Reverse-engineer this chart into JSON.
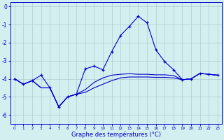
{
  "x": [
    0,
    1,
    2,
    3,
    4,
    5,
    6,
    7,
    8,
    9,
    10,
    11,
    12,
    13,
    14,
    15,
    16,
    17,
    18,
    19,
    20,
    21,
    22,
    23
  ],
  "line_main": [
    -4.0,
    -4.3,
    -4.1,
    -3.8,
    -4.5,
    -5.55,
    -5.0,
    -4.85,
    -3.45,
    -3.3,
    -3.5,
    -2.5,
    -1.6,
    -1.1,
    -0.55,
    -0.9,
    -2.4,
    -3.05,
    -3.5,
    -4.05,
    -4.0,
    -3.7,
    -3.75,
    -3.8
  ],
  "line_mid": [
    -4.0,
    -4.3,
    -4.1,
    -4.5,
    -4.5,
    -5.55,
    -5.0,
    -4.85,
    -4.6,
    -4.2,
    -3.95,
    -3.8,
    -3.75,
    -3.72,
    -3.75,
    -3.75,
    -3.78,
    -3.78,
    -3.82,
    -4.05,
    -4.0,
    -3.7,
    -3.75,
    -3.8
  ],
  "line_low": [
    -4.0,
    -4.3,
    -4.1,
    -4.5,
    -4.5,
    -5.55,
    -5.0,
    -4.85,
    -4.75,
    -4.5,
    -4.3,
    -4.1,
    -3.95,
    -3.9,
    -3.9,
    -3.9,
    -3.92,
    -3.92,
    -3.95,
    -4.05,
    -4.0,
    -3.7,
    -3.75,
    -3.8
  ],
  "line_color": "#0000cc",
  "bg_color": "#d4efef",
  "grid_color": "#b0cccc",
  "xlabel": "Graphe des températures (°C)",
  "ylim": [
    -6.5,
    0.25
  ],
  "xlim": [
    -0.5,
    23.5
  ],
  "yticks": [
    0,
    -1,
    -2,
    -3,
    -4,
    -5,
    -6
  ],
  "xticks": [
    0,
    1,
    2,
    3,
    4,
    5,
    6,
    7,
    8,
    9,
    10,
    11,
    12,
    13,
    14,
    15,
    16,
    17,
    18,
    19,
    20,
    21,
    22,
    23
  ]
}
